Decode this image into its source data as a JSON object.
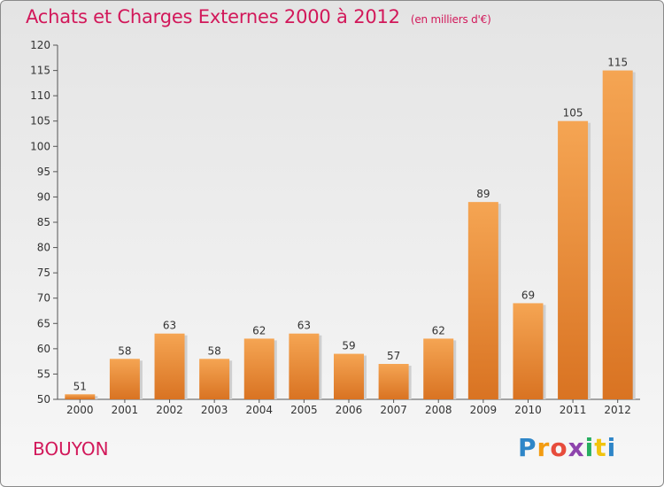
{
  "header": {
    "title": "Achats et Charges Externes 2000 à 2012",
    "subtitle": "(en milliers d'€)"
  },
  "commune": "BOUYON",
  "logo": {
    "letters": [
      "P",
      "r",
      "o",
      "x",
      "i",
      "t",
      "i"
    ],
    "colors": [
      "#2e86c8",
      "#f39c12",
      "#e74c3c",
      "#8e44ad",
      "#27ae60",
      "#f1c40f",
      "#2e86c8"
    ]
  },
  "colors": {
    "bar_top": "#f5a553",
    "bar_bottom": "#d97322",
    "title": "#d2185a",
    "axis": "#555555"
  },
  "chart_data": {
    "type": "bar",
    "title": "Achats et Charges Externes 2000 à 2012",
    "categories": [
      "2000",
      "2001",
      "2002",
      "2003",
      "2004",
      "2005",
      "2006",
      "2007",
      "2008",
      "2009",
      "2010",
      "2011",
      "2012"
    ],
    "values": [
      51,
      58,
      63,
      58,
      62,
      63,
      59,
      57,
      62,
      89,
      69,
      105,
      115
    ],
    "ylim": [
      50,
      120
    ],
    "yticks": [
      50,
      55,
      60,
      65,
      70,
      75,
      80,
      85,
      90,
      95,
      100,
      105,
      110,
      115,
      120
    ],
    "grid": false,
    "xlabel": "",
    "ylabel": ""
  }
}
